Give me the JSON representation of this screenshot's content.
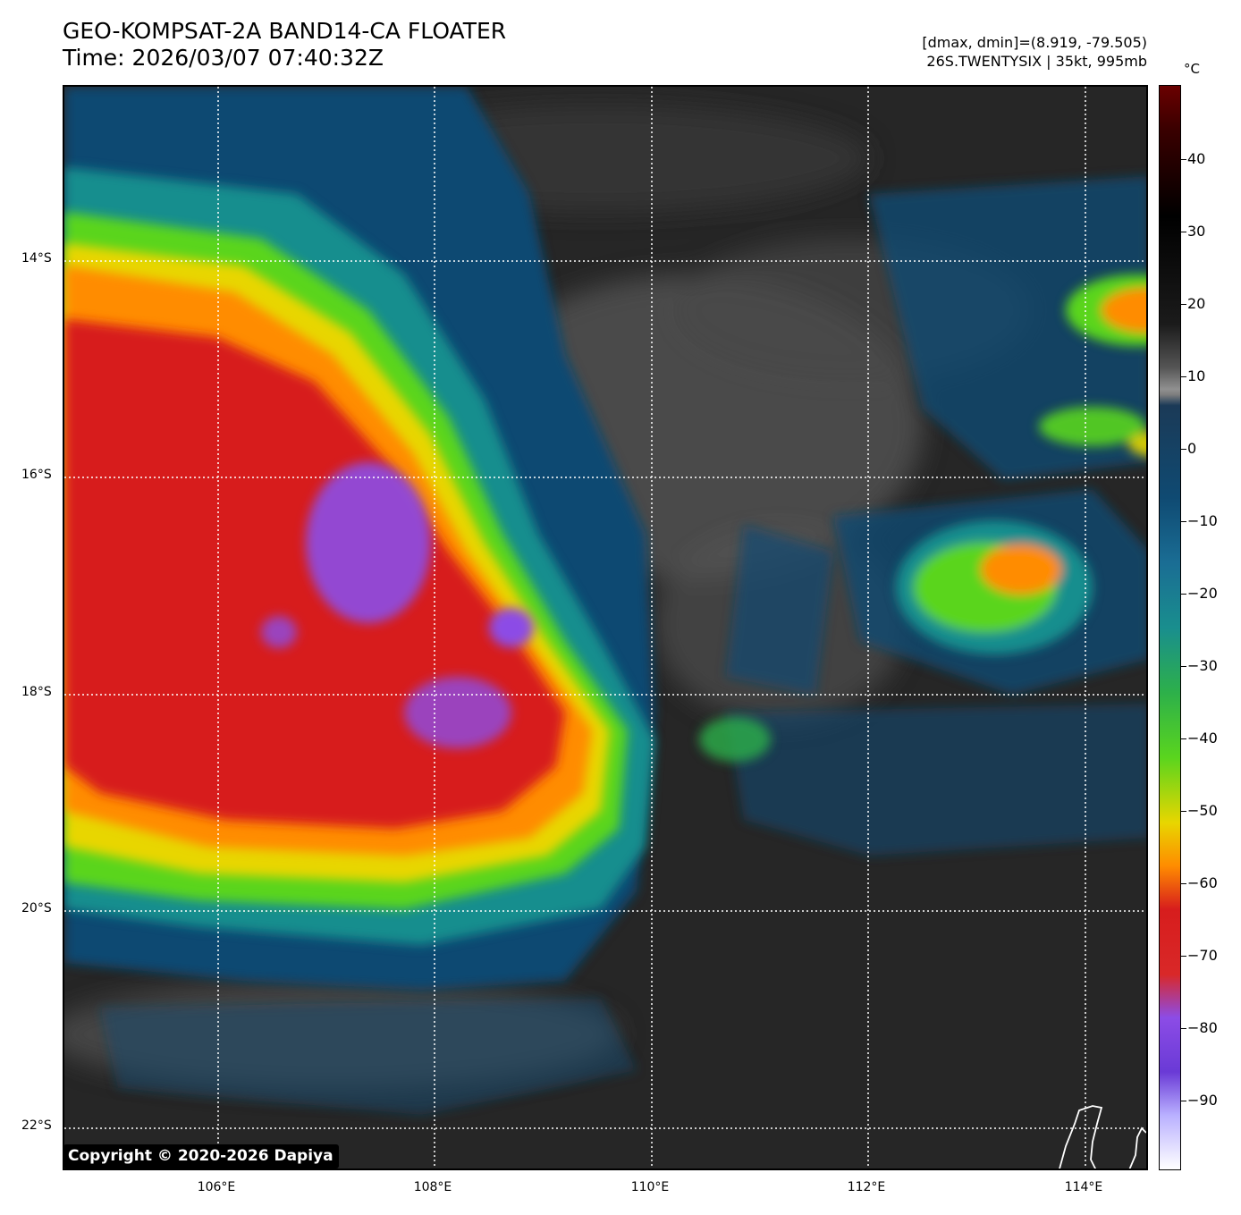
{
  "header": {
    "title_line1": "GEO-KOMPSAT-2A BAND14-CA FLOATER",
    "title_line2": "Time: 2026/03/07 07:40:32Z",
    "info_line1": "[dmax, dmin]=(8.919, -79.505)",
    "info_line2": "26S.TWENTYSIX | 35kt, 995mb"
  },
  "map": {
    "lat_labels": [
      "14°S",
      "16°S",
      "18°S",
      "20°S",
      "22°S"
    ],
    "lon_labels": [
      "106°E",
      "108°E",
      "110°E",
      "112°E",
      "114°E"
    ],
    "copyright": "Copyright © 2020-2026 Dapiya"
  },
  "colorbar": {
    "unit": "°C",
    "ticks": [
      "40",
      "30",
      "20",
      "10",
      "0",
      "−10",
      "−20",
      "−30",
      "−40",
      "−50",
      "−60",
      "−70",
      "−80",
      "−90"
    ]
  },
  "colors": {
    "warm_max": "#6a0000",
    "clear_gray": "#262626",
    "warm_cloud_blue": "#0f4a72",
    "cyan": "#198e8e",
    "green": "#5ad51e",
    "yellow": "#e8d600",
    "orange": "#ff8c00",
    "red": "#d71d1d",
    "purple": "#8c4ce6",
    "coldest": "#ffffff"
  }
}
